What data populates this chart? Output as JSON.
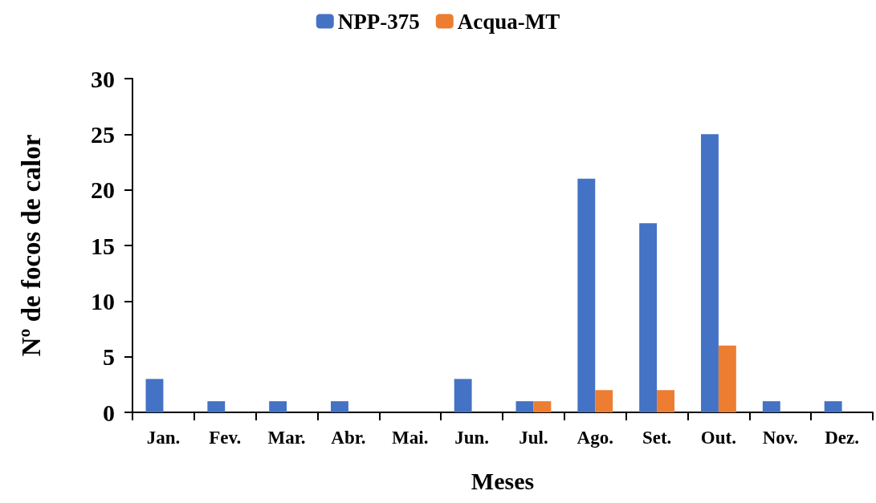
{
  "chart_data": {
    "type": "bar",
    "xlabel": "Meses",
    "ylabel": "Nº de focos de calor",
    "categories": [
      "Jan.",
      "Fev.",
      "Mar.",
      "Abr.",
      "Mai.",
      "Jun.",
      "Jul.",
      "Ago.",
      "Set.",
      "Out.",
      "Nov.",
      "Dez."
    ],
    "series": [
      {
        "name": "NPP-375",
        "color": "#4472c4",
        "values": [
          3,
          1,
          1,
          1,
          0,
          3,
          1,
          21,
          17,
          25,
          1,
          1
        ]
      },
      {
        "name": "Acqua-MT",
        "color": "#ed7d31",
        "values": [
          0,
          0,
          0,
          0,
          0,
          0,
          1,
          2,
          2,
          6,
          0,
          0
        ]
      }
    ],
    "ylim": [
      0,
      30
    ],
    "yticks": [
      0,
      5,
      10,
      15,
      20,
      25,
      30
    ],
    "grid": false,
    "legend": "top"
  }
}
